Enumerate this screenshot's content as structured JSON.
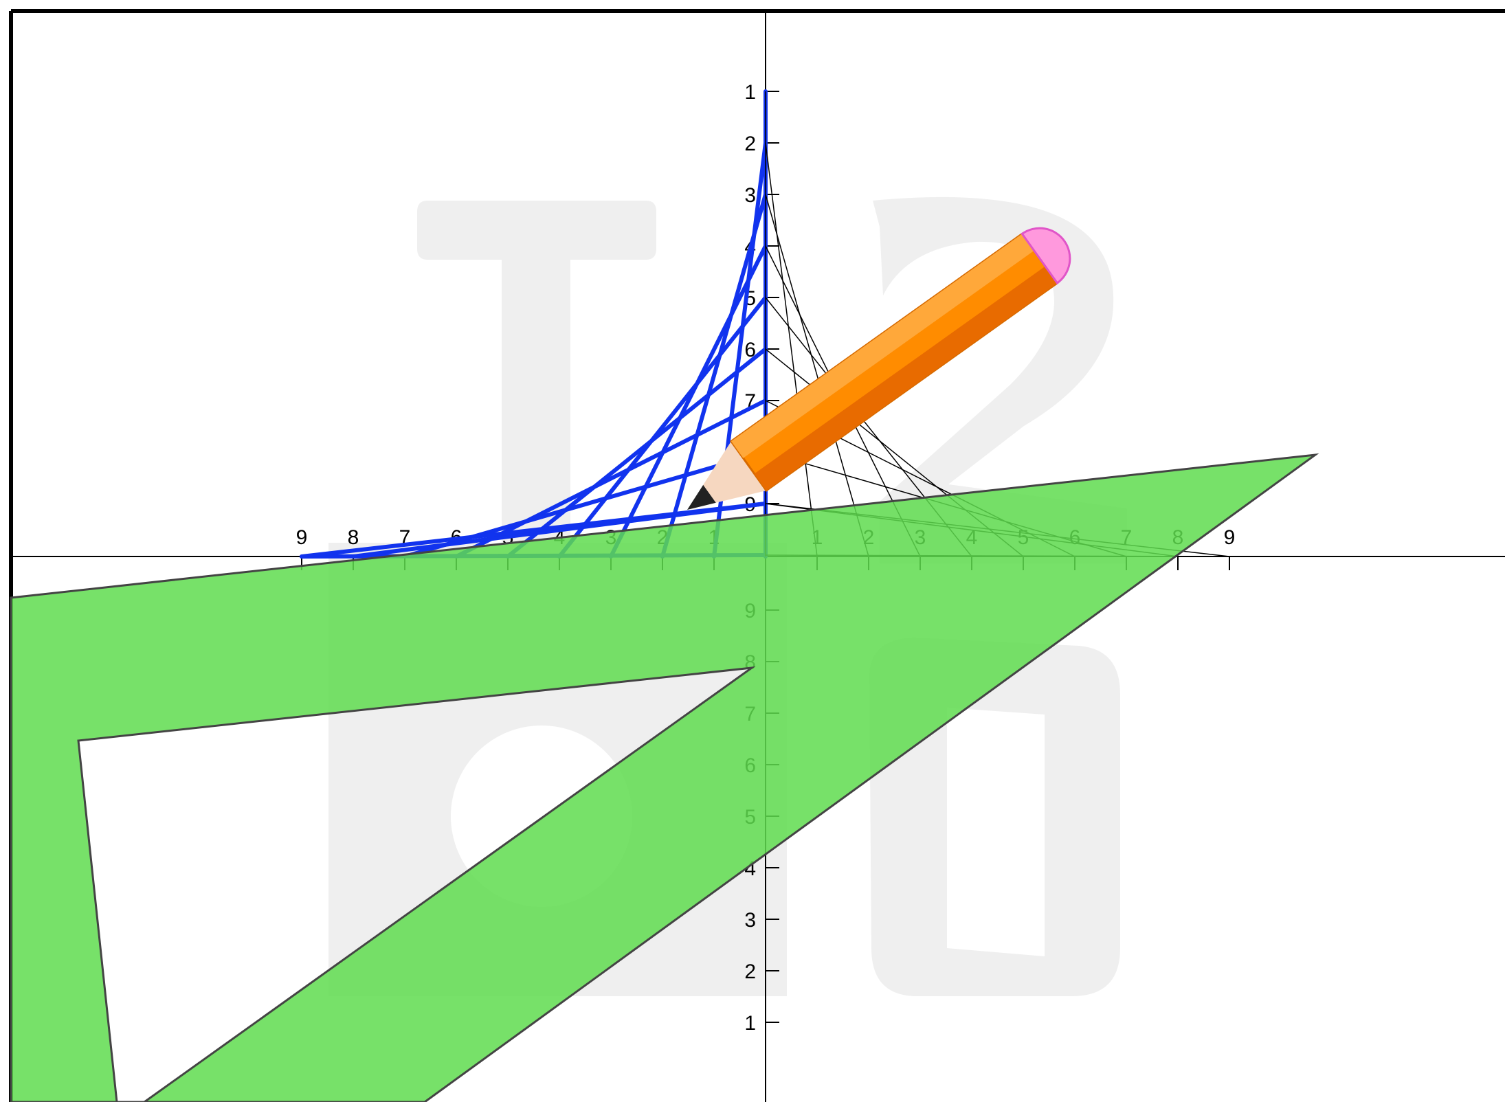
{
  "diagram": {
    "watermark": "T",
    "watermark_digits": [
      "2",
      "0",
      "6"
    ],
    "axis": {
      "x_tick_labels_left": [
        "9",
        "8",
        "7",
        "6",
        "5",
        "4",
        "3",
        "2",
        "1"
      ],
      "x_tick_labels_right": [
        "1",
        "2",
        "3",
        "4",
        "5",
        "6",
        "7",
        "8",
        "9"
      ],
      "y_tick_labels_upper": [
        "1",
        "2",
        "3",
        "4",
        "5",
        "6",
        "7",
        "8",
        "9"
      ],
      "y_tick_labels_lower": [
        "9",
        "8",
        "7",
        "6",
        "5",
        "4",
        "3",
        "2",
        "1"
      ]
    },
    "string_art": {
      "left_quadrant_color": "#1133ee",
      "right_quadrant_color": "#000000",
      "line_count": 10
    },
    "tools": {
      "set_square": {
        "name": "set-square",
        "color": "#5fdc4f"
      },
      "pencil": {
        "name": "pencil",
        "body_color": "#ff8c00",
        "eraser_color": "#ff99dd",
        "tip_color": "#222222"
      }
    },
    "colors": {
      "frame": "#000000",
      "axis": "#000000",
      "watermark": "#eeeeee"
    }
  }
}
